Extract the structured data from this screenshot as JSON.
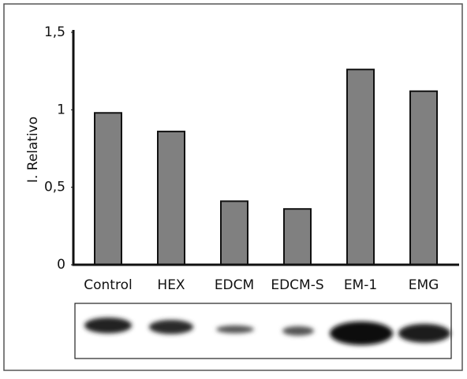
{
  "chart_data": {
    "type": "bar",
    "y_label": "I. Relativo",
    "categories": [
      "Control",
      "HEX",
      "EDCM",
      "EDCM-S",
      "EM-1",
      "EMG"
    ],
    "values": [
      0.98,
      0.86,
      0.41,
      0.36,
      1.26,
      1.12
    ],
    "color": "#808080",
    "ylim": [
      0,
      1.5
    ],
    "yticks": [
      0,
      {
        "value": 0.5,
        "label": "0,5"
      },
      1,
      {
        "value": 1.5,
        "label": "1,5"
      }
    ]
  }
}
